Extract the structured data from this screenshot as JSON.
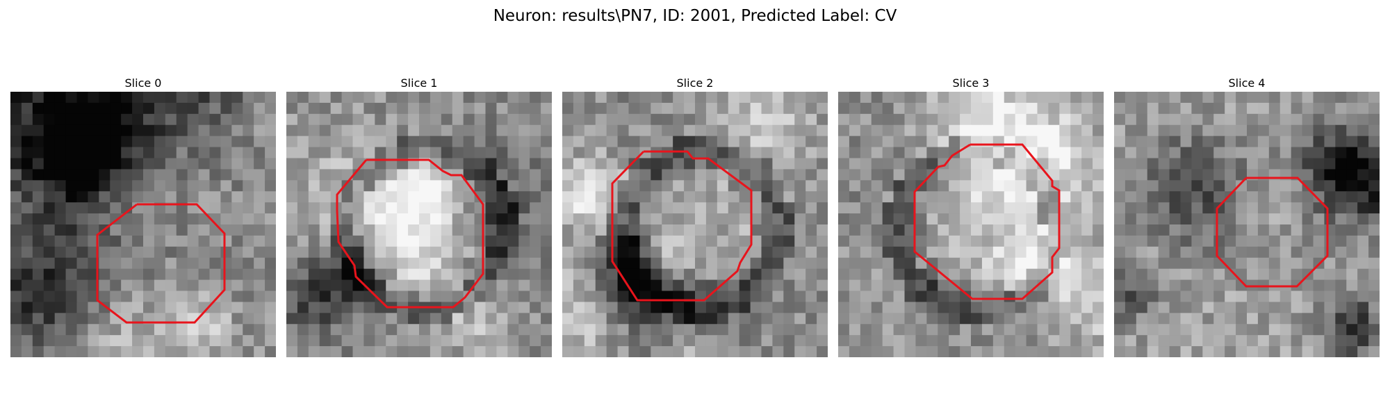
{
  "figure": {
    "title": "Neuron: results\\PN7, ID: 2001, Predicted Label: CV",
    "contour_color": "#e8141c",
    "colormap": "grayscale"
  },
  "slices": [
    {
      "label": "Slice 0",
      "seed": 11,
      "bias": "dark-top"
    },
    {
      "label": "Slice 1",
      "seed": 23,
      "bias": "ring"
    },
    {
      "label": "Slice 2",
      "seed": 37,
      "bias": "ring"
    },
    {
      "label": "Slice 3",
      "seed": 51,
      "bias": "ring"
    },
    {
      "label": "Slice 4",
      "seed": 67,
      "bias": "light"
    }
  ]
}
